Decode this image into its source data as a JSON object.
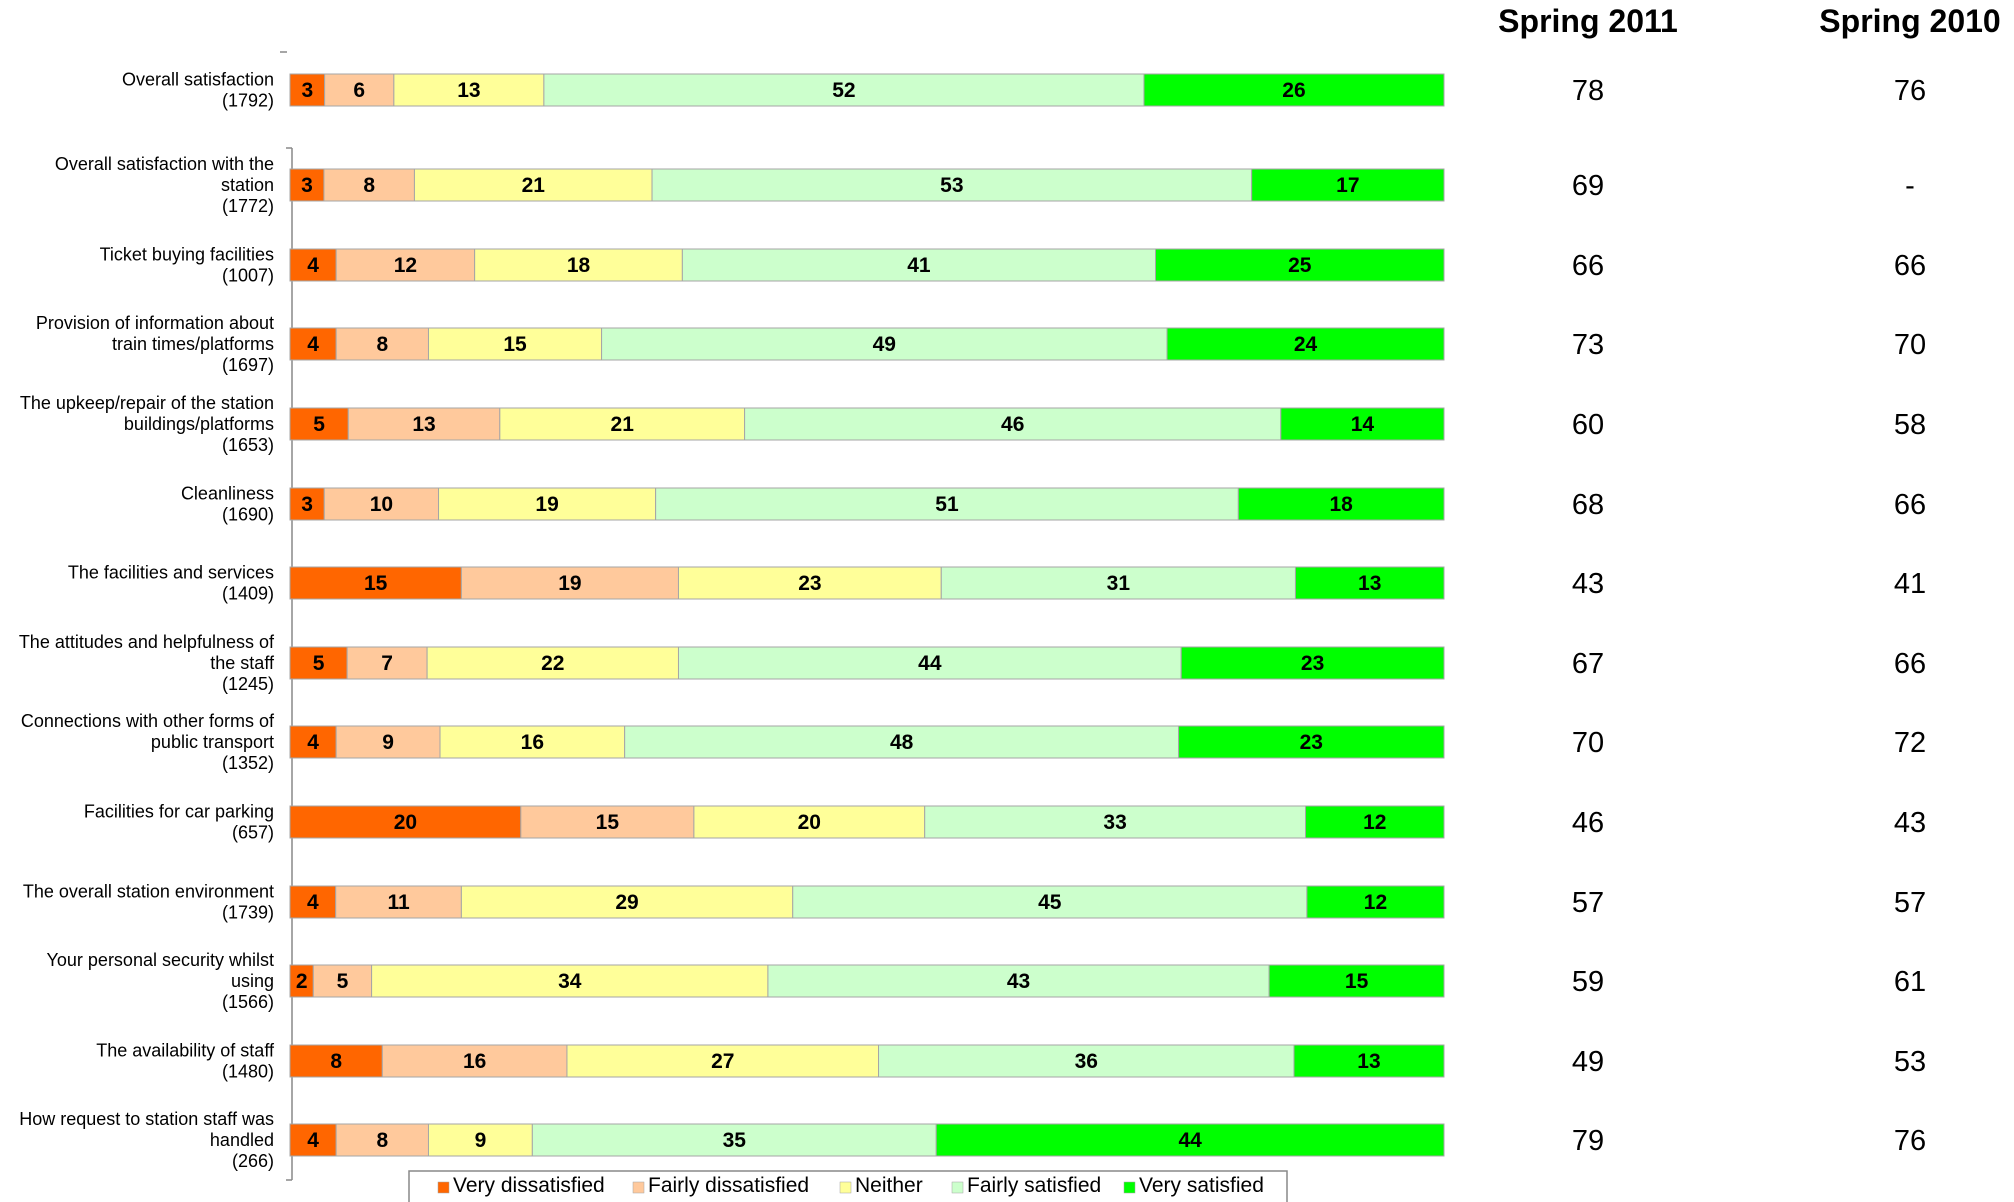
{
  "chart_data": {
    "type": "bar",
    "orientation": "horizontal",
    "stacked": true,
    "title": "",
    "categories": [
      {
        "lines": [
          "Overall satisfaction",
          "(1792)"
        ]
      },
      {
        "lines": [
          "Overall satisfaction  with the",
          "station",
          "(1772)"
        ]
      },
      {
        "lines": [
          "Ticket buying facilities",
          "(1007)"
        ]
      },
      {
        "lines": [
          "Provision of information about",
          "train times/platforms",
          "(1697)"
        ]
      },
      {
        "lines": [
          "The upkeep/repair of the station",
          "buildings/platforms",
          "(1653)"
        ]
      },
      {
        "lines": [
          "Cleanliness",
          "(1690)"
        ]
      },
      {
        "lines": [
          "The facilities and services",
          "(1409)"
        ]
      },
      {
        "lines": [
          "The attitudes and helpfulness of",
          "the staff",
          "(1245)"
        ]
      },
      {
        "lines": [
          "Connections with other forms of",
          "public transport",
          "(1352)"
        ]
      },
      {
        "lines": [
          "Facilities for car parking",
          "(657)"
        ]
      },
      {
        "lines": [
          "The overall station environment",
          "(1739)"
        ]
      },
      {
        "lines": [
          "Your personal security whilst",
          "using",
          "(1566)"
        ]
      },
      {
        "lines": [
          "The availability of staff",
          "(1480)"
        ]
      },
      {
        "lines": [
          "How request to station staff was",
          "handled",
          "(266)"
        ]
      }
    ],
    "series": [
      {
        "name": "Very dissatisfied",
        "color": "#FF6600",
        "values": [
          3,
          3,
          4,
          4,
          5,
          3,
          15,
          5,
          4,
          20,
          4,
          2,
          8,
          4
        ]
      },
      {
        "name": "Fairly dissatisfied",
        "color": "#FFC99C",
        "values": [
          6,
          8,
          12,
          8,
          13,
          10,
          19,
          7,
          9,
          15,
          11,
          5,
          16,
          8
        ]
      },
      {
        "name": "Neither",
        "color": "#FFFF99",
        "values": [
          13,
          21,
          18,
          15,
          21,
          19,
          23,
          22,
          16,
          20,
          29,
          34,
          27,
          9
        ]
      },
      {
        "name": "Fairly satisfied",
        "color": "#CCFFCC",
        "values": [
          52,
          53,
          41,
          49,
          46,
          51,
          31,
          44,
          48,
          33,
          45,
          43,
          36,
          35
        ]
      },
      {
        "name": "Very satisfied",
        "color": "#00FF00",
        "values": [
          26,
          17,
          25,
          24,
          14,
          18,
          13,
          23,
          23,
          12,
          12,
          15,
          13,
          44
        ]
      }
    ],
    "table_columns": [
      {
        "header": "Spring 2011",
        "values": [
          "78",
          "69",
          "66",
          "73",
          "60",
          "68",
          "43",
          "67",
          "70",
          "46",
          "57",
          "59",
          "49",
          "79"
        ]
      },
      {
        "header": "Spring 2010",
        "values": [
          "76",
          "-",
          "66",
          "70",
          "58",
          "66",
          "41",
          "66",
          "72",
          "43",
          "57",
          "61",
          "53",
          "76"
        ]
      }
    ],
    "legend_position": "bottom",
    "grid": false
  }
}
